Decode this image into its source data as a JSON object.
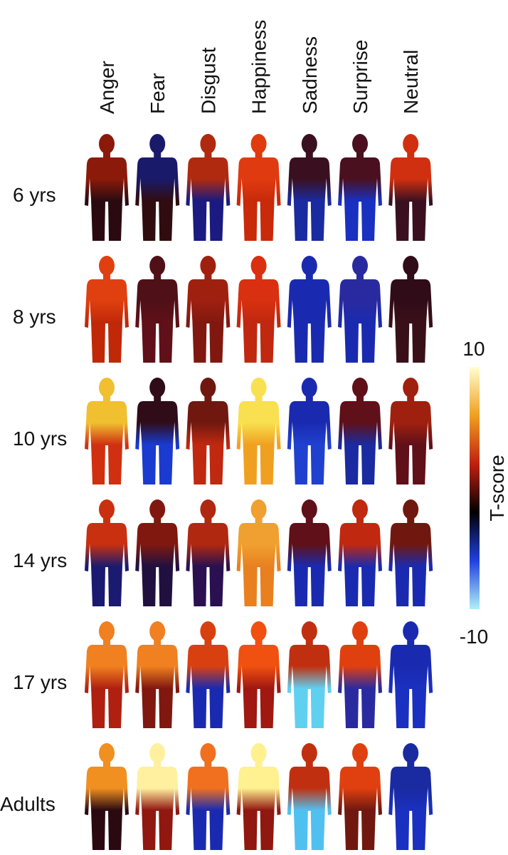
{
  "chart_data": {
    "type": "body-map-grid",
    "columns": [
      "Anger",
      "Fear",
      "Disgust",
      "Happiness",
      "Sadness",
      "Surprise",
      "Neutral"
    ],
    "rows": [
      "6 yrs",
      "8 yrs",
      "10 yrs",
      "14 yrs",
      "17 yrs",
      "Adults"
    ],
    "cell_colors": [
      [
        [
          "#8b1a0a",
          "#2a0a10"
        ],
        [
          "#1a1a6a",
          "#300c10"
        ],
        [
          "#b02a10",
          "#1a1a80"
        ],
        [
          "#e03a10",
          "#c82a0a"
        ],
        [
          "#3a1020",
          "#1a2aa0"
        ],
        [
          "#4a1020",
          "#1a30c0"
        ],
        [
          "#d03010",
          "#3a1020"
        ]
      ],
      [
        [
          "#e04010",
          "#c02808"
        ],
        [
          "#501018",
          "#601018"
        ],
        [
          "#a02010",
          "#801810"
        ],
        [
          "#d83010",
          "#c02810"
        ],
        [
          "#1a2ab0",
          "#1a2ab0"
        ],
        [
          "#2a2aa0",
          "#1a2ab0"
        ],
        [
          "#300c18",
          "#3a1018"
        ]
      ],
      [
        [
          "#f0c030",
          "#d03010"
        ],
        [
          "#300c18",
          "#1a3ad0"
        ],
        [
          "#701810",
          "#c02810"
        ],
        [
          "#f8e050",
          "#f0a020"
        ],
        [
          "#1a2ab0",
          "#2040d0"
        ],
        [
          "#601018",
          "#1a2aa0"
        ],
        [
          "#a02010",
          "#601018"
        ]
      ],
      [
        [
          "#c83010",
          "#1a1a70"
        ],
        [
          "#801810",
          "#201040"
        ],
        [
          "#b02810",
          "#2a1050"
        ],
        [
          "#f0a030",
          "#e88020"
        ],
        [
          "#601018",
          "#1a2ab0"
        ],
        [
          "#c02810",
          "#1a2ab0"
        ],
        [
          "#701810",
          "#1a2ab0"
        ]
      ],
      [
        [
          "#f08020",
          "#b02010"
        ],
        [
          "#f08020",
          "#801810"
        ],
        [
          "#d84010",
          "#1a2ab0"
        ],
        [
          "#f05010",
          "#a01810"
        ],
        [
          "#c03010",
          "#60d0f0"
        ],
        [
          "#e04010",
          "#2a2aa0"
        ],
        [
          "#1a2ab0",
          "#1a30c0"
        ]
      ],
      [
        [
          "#f09020",
          "#2a0a10"
        ],
        [
          "#fff0a0",
          "#901810"
        ],
        [
          "#f07020",
          "#1a2ab0"
        ],
        [
          "#fff090",
          "#901810"
        ],
        [
          "#c03010",
          "#50c0f0"
        ],
        [
          "#e04010",
          "#701810"
        ],
        [
          "#1a2aa0",
          "#1a30c0"
        ]
      ]
    ],
    "colorbar": {
      "label": "T-score",
      "lim": [
        -10,
        10
      ],
      "ticks": [
        -10,
        10
      ],
      "colors": [
        "#b0f0f8",
        "#2040e0",
        "#000000",
        "#c02010",
        "#f0a020",
        "#ffffd0"
      ]
    }
  }
}
